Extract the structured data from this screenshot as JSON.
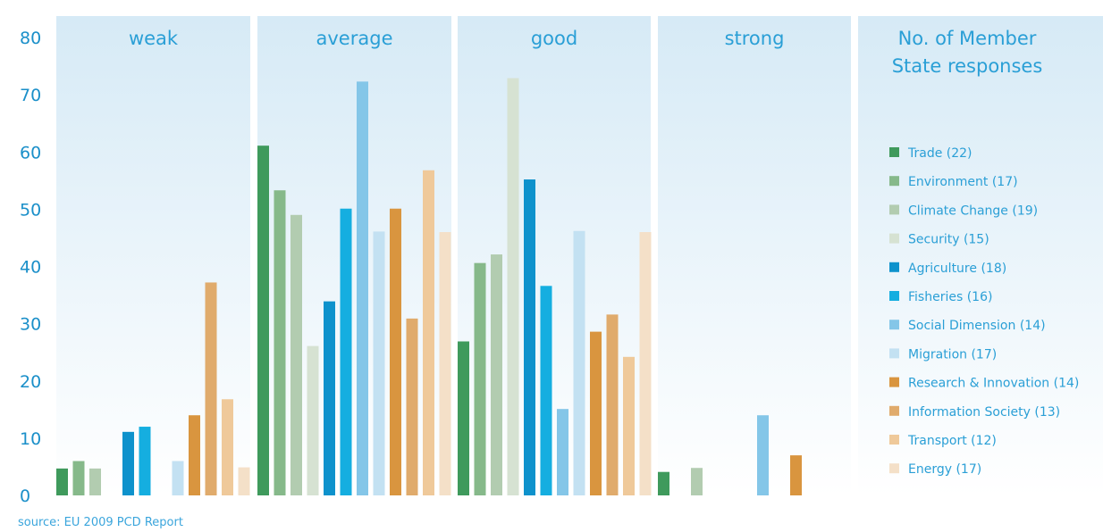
{
  "chart_data": {
    "type": "bar",
    "ylim": [
      0,
      80
    ],
    "yticks": [
      0,
      10,
      20,
      30,
      40,
      50,
      60,
      70,
      80
    ],
    "categories": [
      "weak",
      "average",
      "good",
      "strong"
    ],
    "legend_title": [
      "No. of Member",
      "State responses"
    ],
    "legend_position": "right",
    "series": [
      {
        "name": "Trade (22)",
        "color": "#3f9a5c",
        "values": [
          4.7,
          61.1,
          26.9,
          4.1
        ]
      },
      {
        "name": "Environment (17)",
        "color": "#86b98a",
        "values": [
          6.0,
          53.3,
          40.6,
          0
        ]
      },
      {
        "name": "Climate Change (19)",
        "color": "#b2ccb0",
        "values": [
          4.7,
          49.0,
          42.1,
          4.8
        ]
      },
      {
        "name": "Security (15)",
        "color": "#d6e2d2",
        "values": [
          0,
          26.1,
          72.9,
          0
        ]
      },
      {
        "name": "Agriculture (18)",
        "color": "#0e92cc",
        "values": [
          11.1,
          33.9,
          55.2,
          0
        ]
      },
      {
        "name": "Fisheries (16)",
        "color": "#15aee0",
        "values": [
          12.0,
          50.1,
          36.6,
          0
        ]
      },
      {
        "name": "Social Dimension (14)",
        "color": "#84c6e8",
        "values": [
          0,
          72.3,
          15.1,
          14.0
        ]
      },
      {
        "name": "Migration (17)",
        "color": "#c3e1f2",
        "values": [
          6.0,
          46.1,
          46.2,
          0
        ]
      },
      {
        "name": "Research & Innovation (14)",
        "color": "#d9953f",
        "values": [
          14.0,
          50.1,
          28.6,
          7.0
        ]
      },
      {
        "name": "Information Society (13)",
        "color": "#e0ab6c",
        "values": [
          37.2,
          30.9,
          31.6,
          0
        ]
      },
      {
        "name": "Transport (12)",
        "color": "#efc99a",
        "values": [
          16.8,
          56.8,
          24.2,
          0
        ]
      },
      {
        "name": "Energy (17)",
        "color": "#f4e0c8",
        "values": [
          4.9,
          46.0,
          46.0,
          0
        ]
      }
    ]
  },
  "source": "source: EU 2009 PCD Report",
  "colors": {
    "panel_top": "#d6eaf6",
    "panel_bottom": "#ffffff",
    "text": "#2a9fd6"
  }
}
